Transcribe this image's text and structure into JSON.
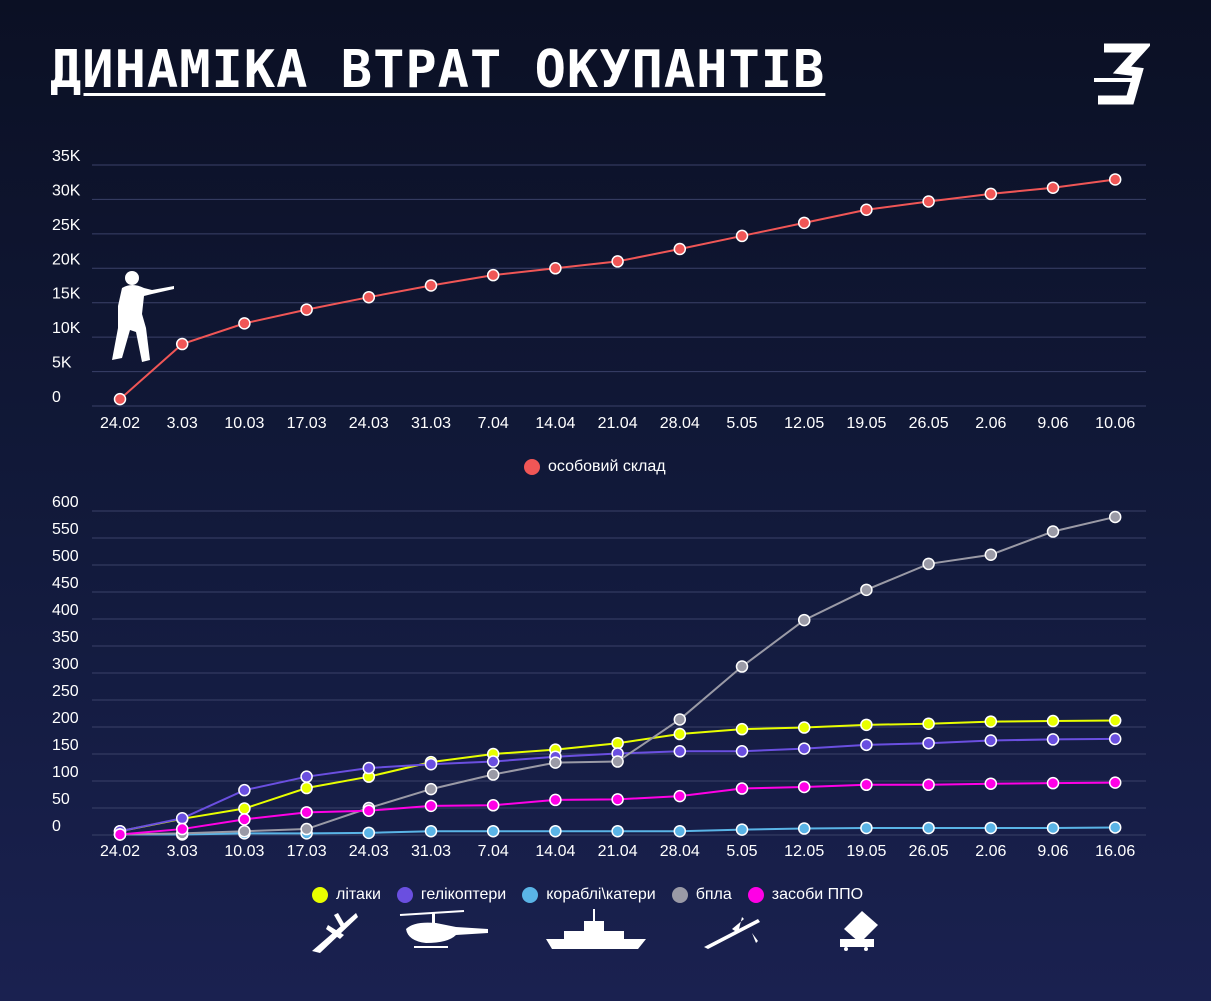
{
  "title": "ДИНАМІКА ВТРАТ ОКУПАНТІВ",
  "logo": {
    "text": "З"
  },
  "colors": {
    "personnel": "#f05656",
    "planes": "#e8ff00",
    "helicopters": "#6a4fe0",
    "ships": "#5ab4e6",
    "drones": "#9a9aa6",
    "aa": "#ff00e6"
  },
  "icons": [
    "soldier-icon",
    "plane-icon",
    "helicopter-icon",
    "ship-icon",
    "drone-icon",
    "rocket-launcher-icon"
  ],
  "chart_data": [
    {
      "type": "line",
      "categories": [
        "24.02",
        "3.03",
        "10.03",
        "17.03",
        "24.03",
        "31.03",
        "7.04",
        "14.04",
        "21.04",
        "28.04",
        "5.05",
        "12.05",
        "19.05",
        "26.05",
        "2.06",
        "9.06",
        "10.06"
      ],
      "y_tick_labels": [
        "0",
        "5K",
        "10K",
        "15K",
        "20K",
        "25K",
        "30K",
        "35K"
      ],
      "ylim": [
        0,
        35000
      ],
      "grid": true,
      "legend_position": "bottom",
      "series": [
        {
          "name": "особовий склад",
          "color_key": "personnel",
          "values": [
            1000,
            9000,
            12000,
            14000,
            15800,
            17500,
            19000,
            20000,
            21000,
            22800,
            24700,
            26600,
            28500,
            29700,
            30800,
            31700,
            32900
          ]
        }
      ]
    },
    {
      "type": "line",
      "categories": [
        "24.02",
        "3.03",
        "10.03",
        "17.03",
        "24.03",
        "31.03",
        "7.04",
        "14.04",
        "21.04",
        "28.04",
        "5.05",
        "12.05",
        "19.05",
        "26.05",
        "2.06",
        "9.06",
        "16.06"
      ],
      "y_tick_labels": [
        "0",
        "50",
        "100",
        "150",
        "200",
        "250",
        "300",
        "350",
        "400",
        "450",
        "500",
        "550",
        "600"
      ],
      "ylim": [
        0,
        600
      ],
      "grid": true,
      "legend_position": "bottom",
      "series": [
        {
          "name": "літаки",
          "color_key": "planes",
          "values": [
            7,
            30,
            49,
            87,
            108,
            135,
            150,
            158,
            170,
            187,
            196,
            199,
            204,
            206,
            210,
            211,
            212
          ]
        },
        {
          "name": "гелікоптери",
          "color_key": "helicopters",
          "values": [
            7,
            31,
            83,
            108,
            124,
            131,
            136,
            145,
            151,
            155,
            155,
            160,
            167,
            170,
            175,
            177,
            178
          ]
        },
        {
          "name": "кораблі\\катери",
          "color_key": "ships",
          "values": [
            1,
            1,
            3,
            3,
            4,
            7,
            7,
            7,
            7,
            7,
            10,
            12,
            13,
            13,
            13,
            13,
            14
          ]
        },
        {
          "name": "бпла",
          "color_key": "drones",
          "values": [
            1,
            3,
            7,
            11,
            50,
            85,
            112,
            134,
            136,
            214,
            312,
            398,
            454,
            502,
            519,
            562,
            589
          ]
        },
        {
          "name": "засоби ППО",
          "color_key": "aa",
          "values": [
            1,
            11,
            29,
            42,
            45,
            54,
            55,
            65,
            66,
            72,
            86,
            89,
            93,
            93,
            95,
            96,
            97
          ]
        }
      ]
    }
  ]
}
